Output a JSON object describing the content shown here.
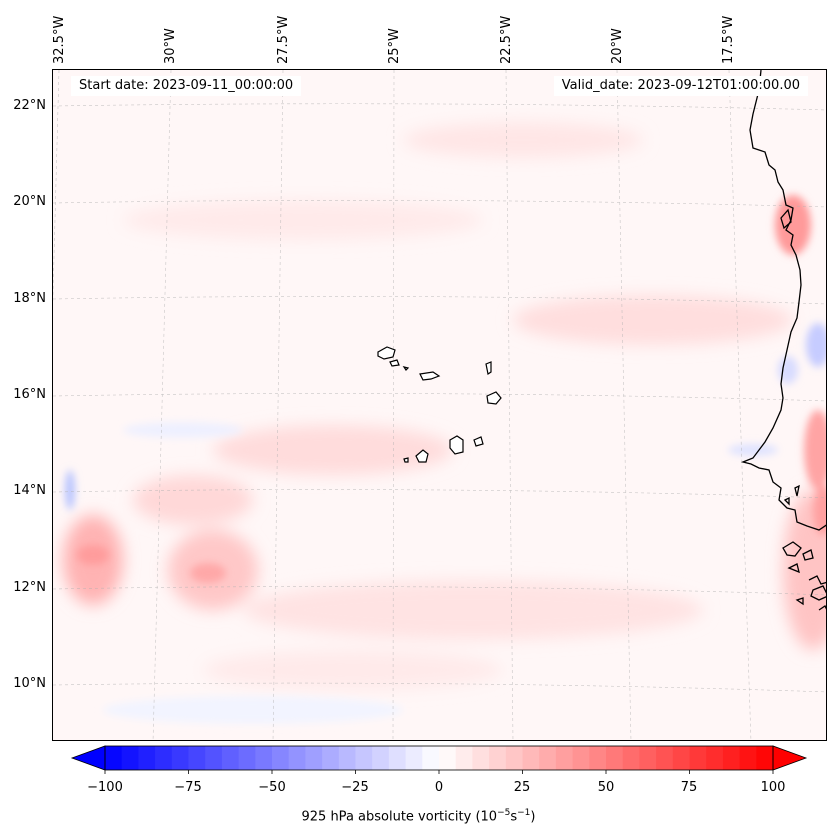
{
  "map": {
    "start_date": "Start date: 2023-09-11_00:00:00",
    "valid_date": "Valid_date: 2023-09-12T01:00:00.00",
    "longitude_labels": [
      "32.5°W",
      "30°W",
      "27.5°W",
      "25°W",
      "22.5°W",
      "20°W",
      "17.5°W"
    ],
    "latitude_labels": [
      "22°N",
      "20°N",
      "18°N",
      "16°N",
      "14°N",
      "12°N",
      "10°N"
    ],
    "colors": {
      "positive": "#ff0000",
      "negative": "#0000ff",
      "neutral": "#ffffff",
      "coast": "#000000"
    }
  },
  "colorbar": {
    "ticks": [
      "−100",
      "−75",
      "−50",
      "−25",
      "0",
      "25",
      "50",
      "75",
      "100"
    ],
    "label_main": "925 hPa absolute vorticity (10",
    "label_exp1": "−5",
    "label_mid": "s",
    "label_exp2": "−1",
    "label_end": ")"
  }
}
